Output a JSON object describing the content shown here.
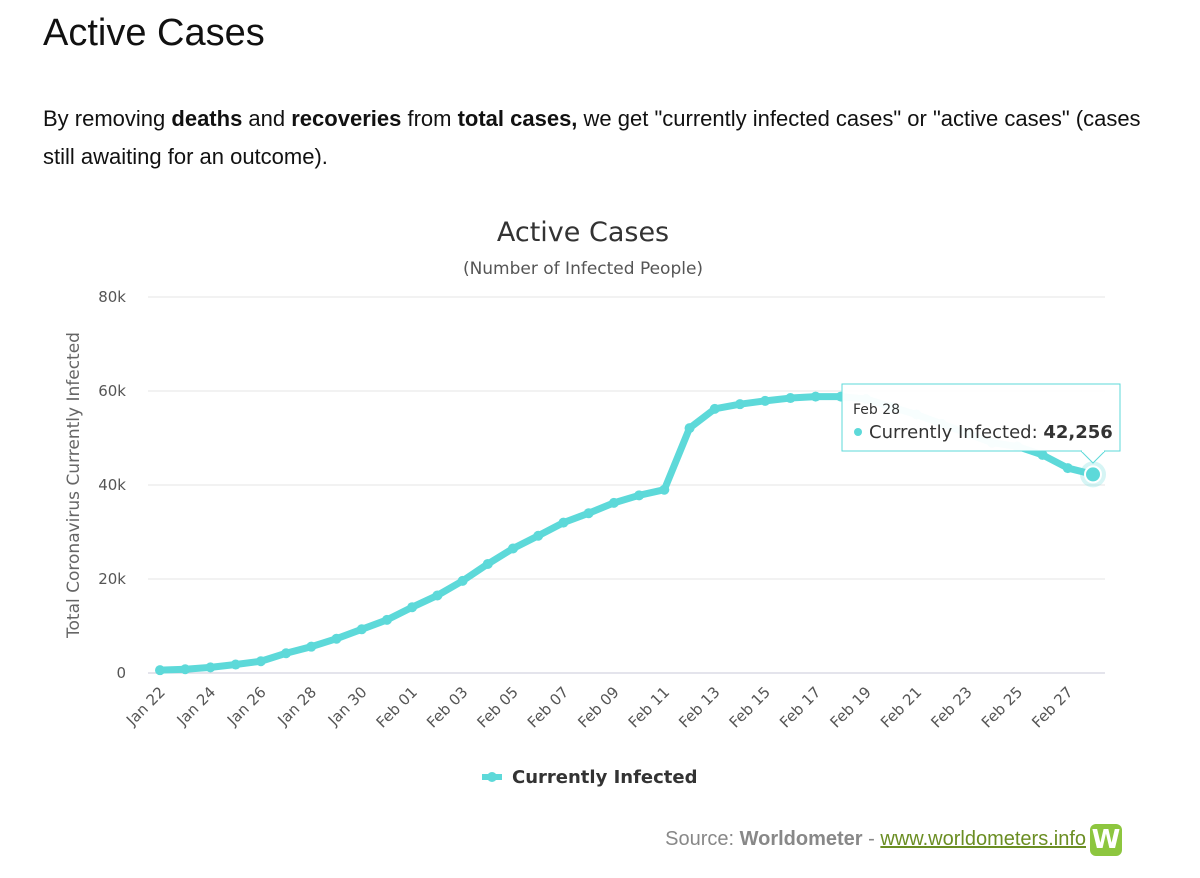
{
  "page": {
    "heading": "Active Cases",
    "intro": {
      "t1": "By removing ",
      "b1": "deaths",
      "t2": " and ",
      "b2": "recoveries",
      "t3": " from ",
      "b3": "total cases,",
      "t4": " we get \"currently infected cases\" or \"active cases\" (cases still awaiting for an outcome)."
    },
    "source": {
      "prefix": "Source: ",
      "name": "Worldometer",
      "sep": " - ",
      "link": "www.worldometers.info",
      "logo_letter": "W"
    }
  },
  "chart_data": {
    "type": "line",
    "title": "Active Cases",
    "subtitle": "(Number of Infected People)",
    "ylabel": "Total Coronavirus Currently Infected",
    "xlabel": "",
    "ylim": [
      0,
      80000
    ],
    "y_ticks": [
      0,
      20000,
      40000,
      60000,
      80000
    ],
    "y_tick_labels": [
      "0",
      "20k",
      "40k",
      "60k",
      "80k"
    ],
    "grid": true,
    "legend": "bottom-center",
    "x": [
      "Jan 22",
      "Jan 23",
      "Jan 24",
      "Jan 25",
      "Jan 26",
      "Jan 27",
      "Jan 28",
      "Jan 29",
      "Jan 30",
      "Jan 31",
      "Feb 01",
      "Feb 02",
      "Feb 03",
      "Feb 04",
      "Feb 05",
      "Feb 06",
      "Feb 07",
      "Feb 08",
      "Feb 09",
      "Feb 10",
      "Feb 11",
      "Feb 12",
      "Feb 13",
      "Feb 14",
      "Feb 15",
      "Feb 16",
      "Feb 17",
      "Feb 18",
      "Feb 19",
      "Feb 20",
      "Feb 21",
      "Feb 22",
      "Feb 23",
      "Feb 24",
      "Feb 25",
      "Feb 26",
      "Feb 27",
      "Feb 28"
    ],
    "x_tick_labels": [
      "Jan 22",
      "Jan 24",
      "Jan 26",
      "Jan 28",
      "Jan 30",
      "Feb 01",
      "Feb 03",
      "Feb 05",
      "Feb 07",
      "Feb 09",
      "Feb 11",
      "Feb 13",
      "Feb 15",
      "Feb 17",
      "Feb 19",
      "Feb 21",
      "Feb 23",
      "Feb 25",
      "Feb 27"
    ],
    "series": [
      {
        "name": "Currently Infected",
        "color": "#5dd9d9",
        "values": [
          600,
          800,
          1200,
          1800,
          2500,
          4200,
          5600,
          7300,
          9300,
          11300,
          14000,
          16500,
          19600,
          23200,
          26500,
          29200,
          32000,
          34000,
          36200,
          37800,
          39000,
          52100,
          56200,
          57200,
          57900,
          58500,
          58800,
          58800,
          58300,
          56600,
          55000,
          53000,
          51000,
          49000,
          48200,
          46400,
          43600,
          42256
        ]
      }
    ],
    "tooltip": {
      "date": "Feb 28",
      "series": "Currently Infected: ",
      "value": "42,256"
    }
  }
}
